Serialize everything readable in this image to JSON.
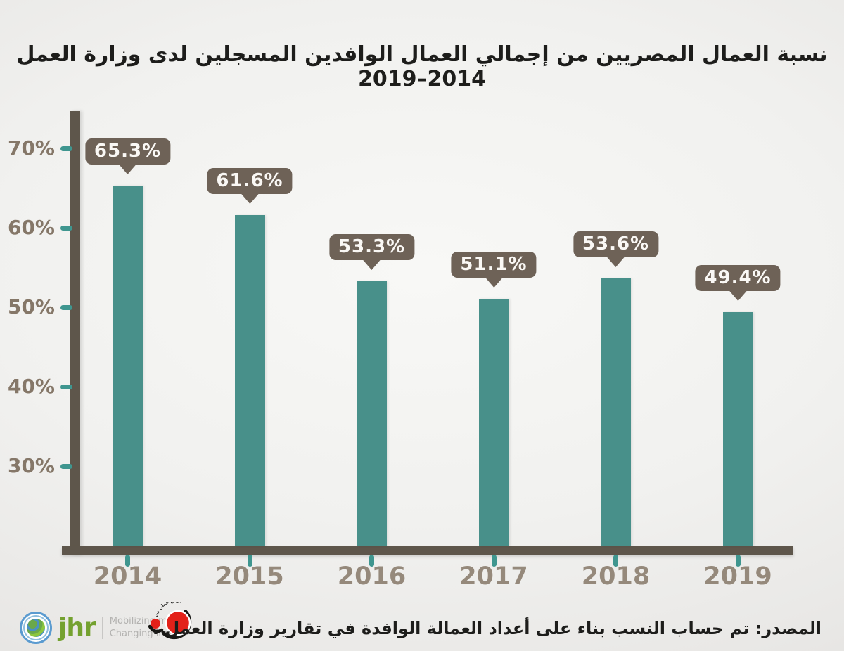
{
  "chart_data": {
    "type": "bar",
    "title": "نسبة العمال المصريين من إجمالي العمال الوافدين المسجلين لدى وزارة العمل 2014–2019",
    "categories": [
      "2014",
      "2015",
      "2016",
      "2017",
      "2018",
      "2019"
    ],
    "values": [
      65.3,
      61.6,
      53.3,
      51.1,
      53.6,
      49.4
    ],
    "value_labels": [
      "65.3%",
      "61.6%",
      "53.3%",
      "51.1%",
      "53.6%",
      "49.4%"
    ],
    "yticks": [
      {
        "value": 70,
        "label": "70%"
      },
      {
        "value": 60,
        "label": "60%"
      },
      {
        "value": 50,
        "label": "50%"
      },
      {
        "value": 40,
        "label": "40%"
      },
      {
        "value": 30,
        "label": "30%"
      }
    ],
    "ylim": [
      20,
      75
    ],
    "xlabel": "",
    "ylabel": "",
    "grid": false,
    "legend": "none",
    "colors": {
      "bar": "#48908a",
      "axis": "#5e564b",
      "tick": "#3f968f",
      "callout_bg": "#6e6257",
      "callout_text": "#faf8f5",
      "ylabel_text": "#857768",
      "xlabel_text": "#95897b",
      "title_text": "#1d1d1b"
    }
  },
  "footer": {
    "source_text": "المصدر: تم حساب النسب بناء على أعداد العمالة الوافدة في تقارير وزارة العمل .",
    "jhr": {
      "wordmark": "jhr",
      "tagline1": "Mobilizing media.",
      "tagline2": "Changing lives."
    },
    "ammannet": {
      "arc_text": "موقع عمان نت"
    }
  }
}
